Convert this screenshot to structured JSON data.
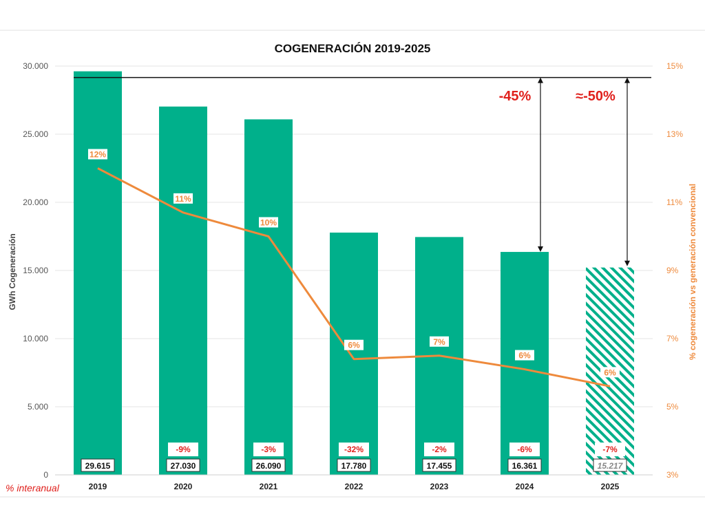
{
  "chart_data": {
    "type": "bar",
    "title": "COGENERACIÓN 2019-2025",
    "ylabel": "GWh Cogeneración",
    "ylabel_right": "% cogeneración  vs generación  convencional",
    "ylim": [
      0,
      30000
    ],
    "ylim_right": [
      3,
      15
    ],
    "yticks": [
      "0",
      "5.000",
      "10.000",
      "15.000",
      "20.000",
      "25.000",
      "30.000"
    ],
    "yticks_right": [
      "3%",
      "5%",
      "7%",
      "9%",
      "11%",
      "13%",
      "15%"
    ],
    "categories": [
      "2019",
      "2020",
      "2021",
      "2022",
      "2023",
      "2024",
      "2025"
    ],
    "series": [
      {
        "type": "bar",
        "values": [
          29615,
          27030,
          26090,
          17780,
          17455,
          16361,
          15217
        ],
        "value_labels": [
          "29.615",
          "27.030",
          "26.090",
          "17.780",
          "17.455",
          "16.361",
          "15.217"
        ],
        "yoy_labels": [
          "",
          "-9%",
          "-3%",
          "-32%",
          "-2%",
          "-6%",
          "-7%"
        ],
        "estimated": [
          false,
          false,
          false,
          false,
          false,
          false,
          true
        ]
      },
      {
        "type": "line",
        "axis": "right",
        "values": [
          12,
          10.7,
          10,
          6.4,
          6.5,
          6.1,
          5.6
        ],
        "labels": [
          "12%",
          "11%",
          "10%",
          "6%",
          "7%",
          "6%",
          "6%"
        ]
      }
    ],
    "reference_value": 29615,
    "annotations": [
      "-45%",
      "≈-50%"
    ],
    "row_label": "% interanual",
    "colors": {
      "bar": "#00b08b",
      "line": "#ee8a3c",
      "red": "#e0201c"
    },
    "grid": true
  }
}
